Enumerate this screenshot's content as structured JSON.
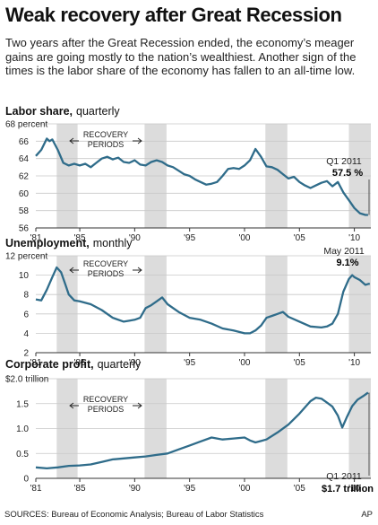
{
  "header": {
    "title": "Weak recovery after Great Recession",
    "subtitle": "Two years after the Great Recession ended, the economy’s meager gains are going mostly to the nation’s wealthiest. Another sign of the times is the labor share of the economy has fallen to an all-time low."
  },
  "footer": {
    "sources": "SOURCES: Bureau of Economic Analysis; Bureau of Labor Statistics",
    "credit": "AP"
  },
  "colors": {
    "line": "#2f6c8a",
    "shade": "#dcdcdc",
    "grid": "#c8c8c8"
  },
  "chart_data": [
    {
      "type": "line",
      "title": "Labor share,",
      "title_suffix": "quarterly",
      "y_unit_label": "68 percent",
      "ylim": [
        56,
        68
      ],
      "y_ticks": [
        56,
        58,
        60,
        62,
        64,
        66,
        68
      ],
      "x_ticks": [
        "'81",
        "'85",
        "'90",
        "'95",
        "'00",
        "'05",
        "'10"
      ],
      "xlim": [
        1981,
        2011.5
      ],
      "shaded_periods": [
        [
          1982.9,
          1984.8
        ],
        [
          1990.9,
          1992.9
        ],
        [
          2001.9,
          2003.9
        ],
        [
          2009.5,
          2011.5
        ]
      ],
      "shaded_label": "RECOVERY\nPERIODS",
      "annotation": {
        "label": "Q1 2011",
        "value": "57.5 %"
      },
      "series": [
        {
          "x": [
            1981.0,
            1981.5,
            1982.0,
            1982.25,
            1982.5,
            1983.0,
            1983.5,
            1984.0,
            1984.5,
            1985.0,
            1985.5,
            1986.0,
            1986.5,
            1987.0,
            1987.5,
            1988.0,
            1988.5,
            1989.0,
            1989.5,
            1990.0,
            1990.5,
            1991.0,
            1991.5,
            1992.0,
            1992.5,
            1993.0,
            1993.5,
            1994.0,
            1994.5,
            1995.0,
            1995.5,
            1996.0,
            1996.5,
            1997.0,
            1997.5,
            1998.0,
            1998.5,
            1999.0,
            1999.5,
            2000.0,
            2000.5,
            2001.0,
            2001.5,
            2002.0,
            2002.5,
            2003.0,
            2003.5,
            2004.0,
            2004.5,
            2005.0,
            2005.5,
            2006.0,
            2006.5,
            2007.0,
            2007.5,
            2008.0,
            2008.5,
            2009.0,
            2009.5,
            2010.0,
            2010.5,
            2011.0,
            2011.25
          ],
          "values": [
            64.3,
            65.0,
            66.3,
            66.0,
            66.2,
            65.0,
            63.5,
            63.2,
            63.4,
            63.2,
            63.4,
            63.0,
            63.5,
            64.0,
            64.2,
            63.9,
            64.1,
            63.6,
            63.5,
            63.8,
            63.3,
            63.2,
            63.6,
            63.8,
            63.6,
            63.2,
            63.0,
            62.6,
            62.2,
            62.0,
            61.6,
            61.3,
            61.0,
            61.1,
            61.3,
            62.0,
            62.8,
            62.9,
            62.8,
            63.2,
            63.8,
            65.1,
            64.2,
            63.1,
            63.0,
            62.7,
            62.2,
            61.7,
            61.9,
            61.3,
            60.9,
            60.6,
            60.9,
            61.2,
            61.4,
            60.8,
            61.3,
            60.1,
            59.2,
            58.3,
            57.7,
            57.5,
            57.5
          ]
        }
      ]
    },
    {
      "type": "line",
      "title": "Unemployment,",
      "title_suffix": "monthly",
      "y_unit_label": "12 percent",
      "ylim": [
        2,
        12
      ],
      "y_ticks": [
        2,
        4,
        6,
        8,
        10,
        12
      ],
      "x_ticks": [
        "'81",
        "'85",
        "'90",
        "'95",
        "'00",
        "'05",
        "'10"
      ],
      "xlim": [
        1981,
        2011.5
      ],
      "shaded_periods": [
        [
          1982.9,
          1984.8
        ],
        [
          1990.9,
          1992.9
        ],
        [
          2001.9,
          2003.9
        ],
        [
          2009.5,
          2011.5
        ]
      ],
      "shaded_label": "RECOVERY\nPERIODS",
      "annotation": {
        "label": "May 2011",
        "value": "9.1%"
      },
      "series": [
        {
          "x": [
            1981.0,
            1981.5,
            1982.0,
            1982.5,
            1982.9,
            1983.3,
            1983.7,
            1984.0,
            1984.5,
            1985.0,
            1986.0,
            1987.0,
            1988.0,
            1989.0,
            1989.5,
            1990.0,
            1990.5,
            1991.0,
            1991.5,
            1992.0,
            1992.5,
            1993.0,
            1994.0,
            1995.0,
            1996.0,
            1997.0,
            1998.0,
            1999.0,
            2000.0,
            2000.5,
            2001.0,
            2001.5,
            2002.0,
            2002.5,
            2003.0,
            2003.5,
            2004.0,
            2005.0,
            2006.0,
            2007.0,
            2007.5,
            2008.0,
            2008.5,
            2009.0,
            2009.5,
            2009.8,
            2010.0,
            2010.5,
            2011.0,
            2011.3,
            2011.4
          ],
          "values": [
            7.5,
            7.4,
            8.5,
            9.8,
            10.8,
            10.3,
            9.0,
            8.0,
            7.4,
            7.3,
            7.0,
            6.4,
            5.6,
            5.2,
            5.3,
            5.4,
            5.6,
            6.6,
            6.9,
            7.3,
            7.7,
            7.0,
            6.2,
            5.6,
            5.4,
            5.0,
            4.5,
            4.3,
            4.0,
            4.0,
            4.3,
            4.8,
            5.6,
            5.8,
            6.0,
            6.2,
            5.7,
            5.2,
            4.7,
            4.6,
            4.7,
            5.0,
            6.0,
            8.3,
            9.6,
            10.0,
            9.8,
            9.5,
            9.0,
            9.1,
            9.1
          ]
        }
      ]
    },
    {
      "type": "line",
      "title": "Corporate profit,",
      "title_suffix": "quarterly",
      "y_unit_label": "$2.0 trillion",
      "ylim": [
        0,
        2.0
      ],
      "y_ticks": [
        0,
        0.5,
        1.0,
        1.5,
        2.0
      ],
      "y_tick_labels": [
        "0",
        "0.5",
        "1.0",
        "1.5",
        "$2.0 trillion"
      ],
      "x_ticks": [
        "'81",
        "'85",
        "'90",
        "'95",
        "'00",
        "'05",
        "'10"
      ],
      "xlim": [
        1981,
        2011.5
      ],
      "shaded_periods": [
        [
          1982.9,
          1984.8
        ],
        [
          1990.9,
          1992.9
        ],
        [
          2001.9,
          2003.9
        ],
        [
          2009.5,
          2011.5
        ]
      ],
      "shaded_label": "RECOVERY\nPERIODS",
      "annotation": {
        "label": "Q1 2011",
        "value": "$1.7 trillion"
      },
      "series": [
        {
          "x": [
            1981.0,
            1982.0,
            1983.0,
            1984.0,
            1985.0,
            1986.0,
            1987.0,
            1988.0,
            1989.0,
            1990.0,
            1991.0,
            1992.0,
            1993.0,
            1994.0,
            1995.0,
            1996.0,
            1997.0,
            1998.0,
            1999.0,
            2000.0,
            2000.5,
            2001.0,
            2001.5,
            2002.0,
            2003.0,
            2004.0,
            2005.0,
            2006.0,
            2006.5,
            2007.0,
            2007.5,
            2008.0,
            2008.5,
            2008.9,
            2009.3,
            2009.8,
            2010.3,
            2010.8,
            2011.25
          ],
          "values": [
            0.22,
            0.2,
            0.22,
            0.25,
            0.26,
            0.28,
            0.33,
            0.38,
            0.4,
            0.42,
            0.44,
            0.47,
            0.5,
            0.58,
            0.66,
            0.74,
            0.82,
            0.78,
            0.8,
            0.82,
            0.76,
            0.72,
            0.75,
            0.78,
            0.92,
            1.08,
            1.3,
            1.55,
            1.62,
            1.6,
            1.52,
            1.44,
            1.26,
            1.02,
            1.22,
            1.45,
            1.58,
            1.65,
            1.72
          ]
        }
      ]
    }
  ]
}
